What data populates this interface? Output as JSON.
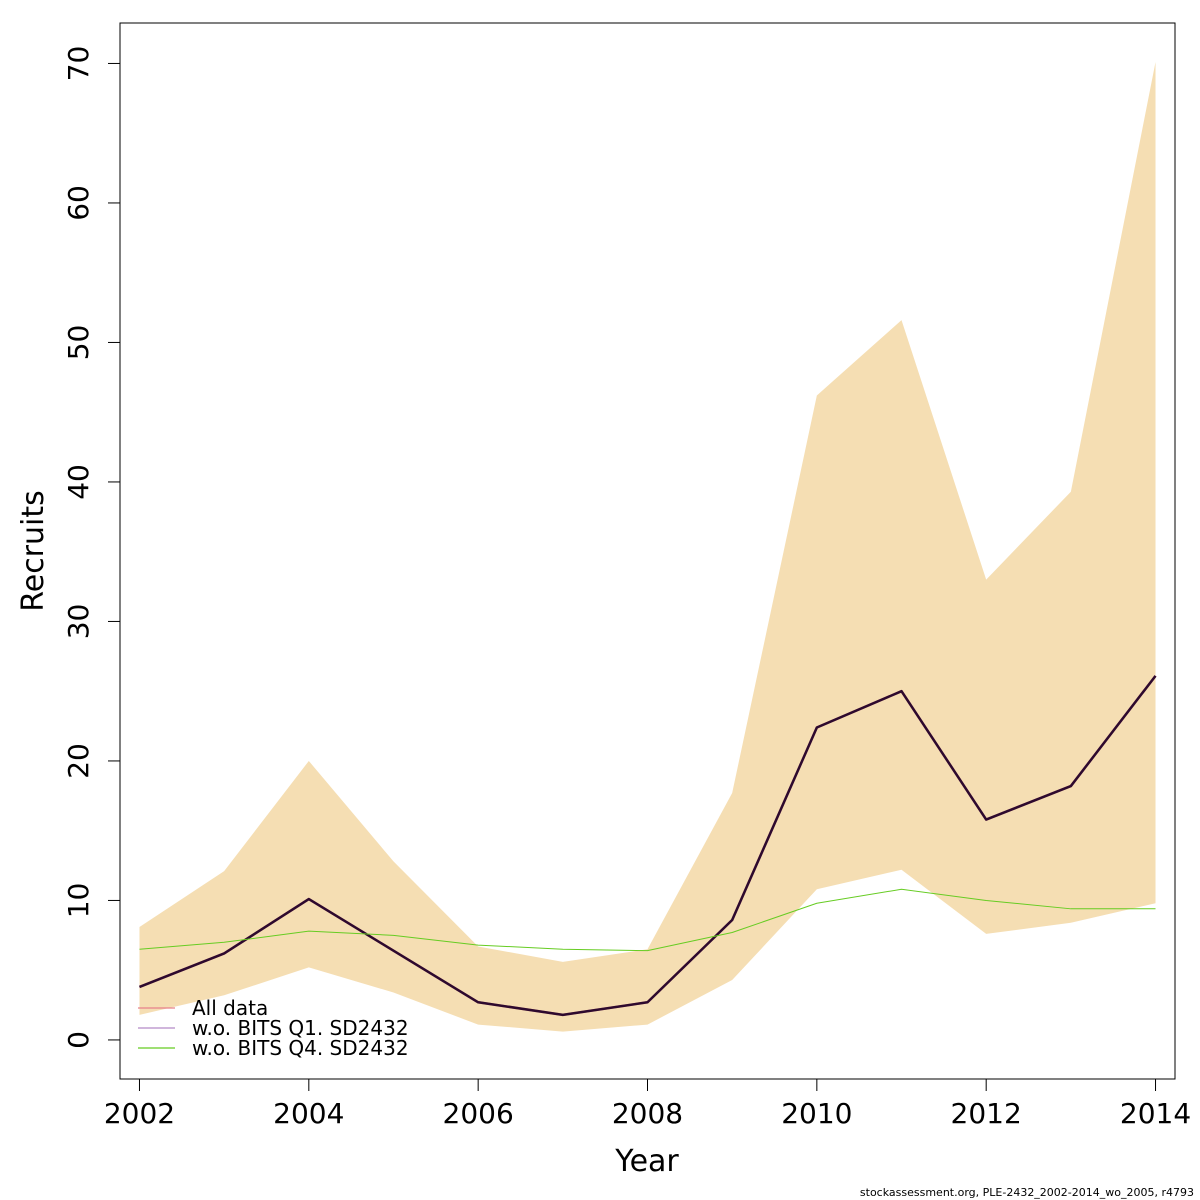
{
  "chart_data": {
    "type": "line",
    "xlabel": "Year",
    "ylabel": "Recruits",
    "xlim": [
      2001.77,
      2014.23
    ],
    "ylim": [
      -2.8,
      72.9
    ],
    "x_ticks": [
      2002,
      2004,
      2006,
      2008,
      2010,
      2012,
      2014
    ],
    "y_ticks": [
      0,
      10,
      20,
      30,
      40,
      50,
      60,
      70
    ],
    "x": [
      2002,
      2003,
      2004,
      2005,
      2006,
      2007,
      2008,
      2009,
      2010,
      2011,
      2012,
      2013,
      2014
    ],
    "band": {
      "color": "#f5deb3",
      "lower": [
        1.8,
        3.2,
        5.2,
        3.4,
        1.1,
        0.6,
        1.1,
        4.3,
        10.8,
        12.2,
        7.6,
        8.4,
        9.8
      ],
      "upper": [
        8.1,
        12.1,
        20.0,
        12.8,
        6.7,
        5.6,
        6.5,
        17.7,
        46.2,
        51.6,
        33.0,
        39.3,
        70.1
      ]
    },
    "series": [
      {
        "name": "All data",
        "color": "#e8828a",
        "legend_color": "#e8828a",
        "values": [
          3.8,
          6.2,
          10.1,
          6.4,
          2.7,
          1.8,
          2.7,
          8.6,
          22.4,
          25.0,
          15.8,
          18.2,
          26.1
        ]
      },
      {
        "name": "w.o. BITS Q1. SD2432",
        "color": "#2d0a2e",
        "legend_color": "#b58ac8",
        "values": [
          3.8,
          6.2,
          10.1,
          6.4,
          2.7,
          1.8,
          2.7,
          8.6,
          22.4,
          25.0,
          15.8,
          18.2,
          26.1
        ]
      },
      {
        "name": "w.o. BITS Q4. SD2432",
        "color": "#66cc22",
        "legend_color": "#66cc22",
        "values": [
          6.5,
          7.0,
          7.8,
          7.5,
          6.8,
          6.5,
          6.4,
          7.7,
          9.8,
          10.8,
          10.0,
          9.4,
          9.4
        ]
      }
    ],
    "legend_position": "bottom-left",
    "grid": false
  },
  "footer": "stockassessment.org, PLE-2432_2002-2014_wo_2005, r4793"
}
